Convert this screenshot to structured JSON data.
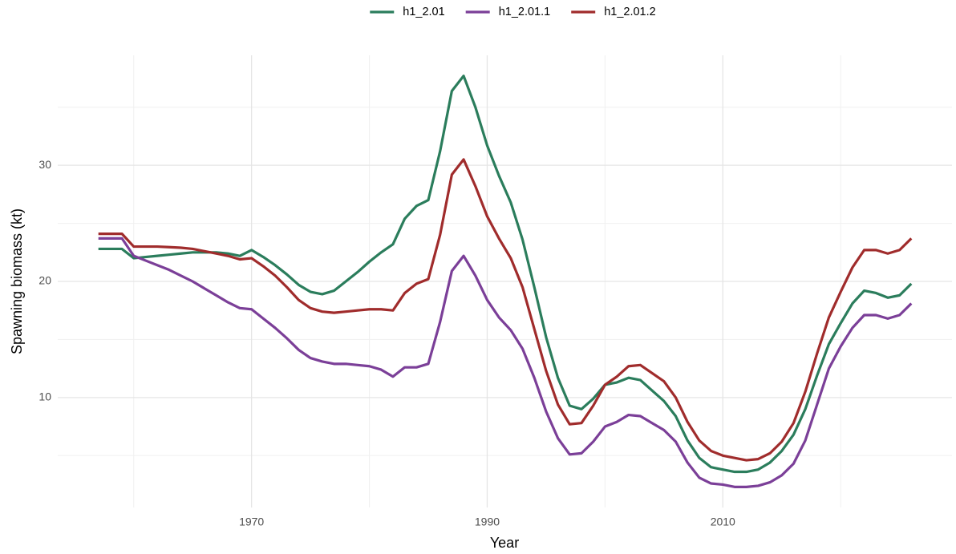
{
  "chart_data": {
    "type": "line",
    "x_label": "Year",
    "y_label": "Spawning biomass (kt)",
    "x": [
      1957,
      1958,
      1959,
      1960,
      1961,
      1962,
      1963,
      1964,
      1965,
      1966,
      1967,
      1968,
      1969,
      1970,
      1971,
      1972,
      1973,
      1974,
      1975,
      1976,
      1977,
      1978,
      1979,
      1980,
      1981,
      1982,
      1983,
      1984,
      1985,
      1986,
      1987,
      1988,
      1989,
      1990,
      1991,
      1992,
      1993,
      1994,
      1995,
      1996,
      1997,
      1998,
      1999,
      2000,
      2001,
      2002,
      2003,
      2004,
      2005,
      2006,
      2007,
      2008,
      2009,
      2010,
      2011,
      2012,
      2013,
      2014,
      2015,
      2016,
      2017,
      2018,
      2019,
      2020,
      2021,
      2022,
      2023,
      2024,
      2025,
      2026
    ],
    "series": [
      {
        "name": "h1_2.01",
        "color": "#2b7d5c",
        "values": [
          22.8,
          22.8,
          22.8,
          22.0,
          22.1,
          22.2,
          22.3,
          22.4,
          22.5,
          22.5,
          22.5,
          22.4,
          22.2,
          22.7,
          22.1,
          21.4,
          20.6,
          19.7,
          19.1,
          18.9,
          19.2,
          20.0,
          20.8,
          21.7,
          22.5,
          23.2,
          25.4,
          26.5,
          27.0,
          31.2,
          36.4,
          37.7,
          35.0,
          31.7,
          29.1,
          26.8,
          23.6,
          19.5,
          15.2,
          11.7,
          9.3,
          9.0,
          9.9,
          11.1,
          11.3,
          11.7,
          11.5,
          10.6,
          9.7,
          8.4,
          6.3,
          4.8,
          4.0,
          3.8,
          3.6,
          3.6,
          3.8,
          4.4,
          5.4,
          6.8,
          9.0,
          11.9,
          14.6,
          16.4,
          18.1,
          19.2,
          19.0,
          18.6,
          18.8,
          19.8
        ]
      },
      {
        "name": "h1_2.01.1",
        "color": "#7b3f98",
        "values": [
          23.7,
          23.7,
          23.7,
          22.2,
          21.8,
          21.4,
          21.0,
          20.5,
          20.0,
          19.4,
          18.8,
          18.2,
          17.7,
          17.6,
          16.8,
          16.0,
          15.1,
          14.1,
          13.4,
          13.1,
          12.9,
          12.9,
          12.8,
          12.7,
          12.4,
          11.8,
          12.6,
          12.6,
          12.9,
          16.5,
          20.9,
          22.2,
          20.5,
          18.4,
          16.9,
          15.8,
          14.2,
          11.7,
          8.8,
          6.5,
          5.1,
          5.2,
          6.2,
          7.5,
          7.9,
          8.5,
          8.4,
          7.8,
          7.2,
          6.2,
          4.4,
          3.1,
          2.6,
          2.5,
          2.3,
          2.3,
          2.4,
          2.7,
          3.3,
          4.3,
          6.3,
          9.4,
          12.5,
          14.4,
          16.0,
          17.1,
          17.1,
          16.8,
          17.1,
          18.1
        ]
      },
      {
        "name": "h1_2.01.2",
        "color": "#a02c2c",
        "values": [
          24.1,
          24.1,
          24.1,
          23.0,
          23.0,
          23.0,
          22.95,
          22.9,
          22.8,
          22.6,
          22.4,
          22.2,
          21.9,
          22.0,
          21.3,
          20.5,
          19.5,
          18.4,
          17.7,
          17.4,
          17.3,
          17.4,
          17.5,
          17.6,
          17.6,
          17.5,
          19.0,
          19.8,
          20.2,
          24.0,
          29.2,
          30.5,
          28.2,
          25.6,
          23.7,
          22.0,
          19.5,
          15.9,
          12.3,
          9.4,
          7.7,
          7.8,
          9.3,
          11.1,
          11.8,
          12.7,
          12.8,
          12.1,
          11.4,
          10.0,
          7.9,
          6.3,
          5.4,
          5.0,
          4.8,
          4.6,
          4.7,
          5.2,
          6.2,
          7.8,
          10.5,
          13.8,
          16.9,
          19.1,
          21.2,
          22.7,
          22.7,
          22.4,
          22.7,
          23.7
        ]
      }
    ],
    "xlim": [
      1953.55,
      2029.45
    ],
    "xticks": [
      1970,
      1990,
      2010
    ],
    "xminorticks": [
      1960,
      1980,
      2000,
      2020
    ],
    "ylim": [
      0.53,
      39.47
    ],
    "yticks": [
      10,
      20,
      30
    ],
    "yminorticks": [
      5,
      15,
      25,
      35
    ],
    "grid": true,
    "legend": "top"
  }
}
